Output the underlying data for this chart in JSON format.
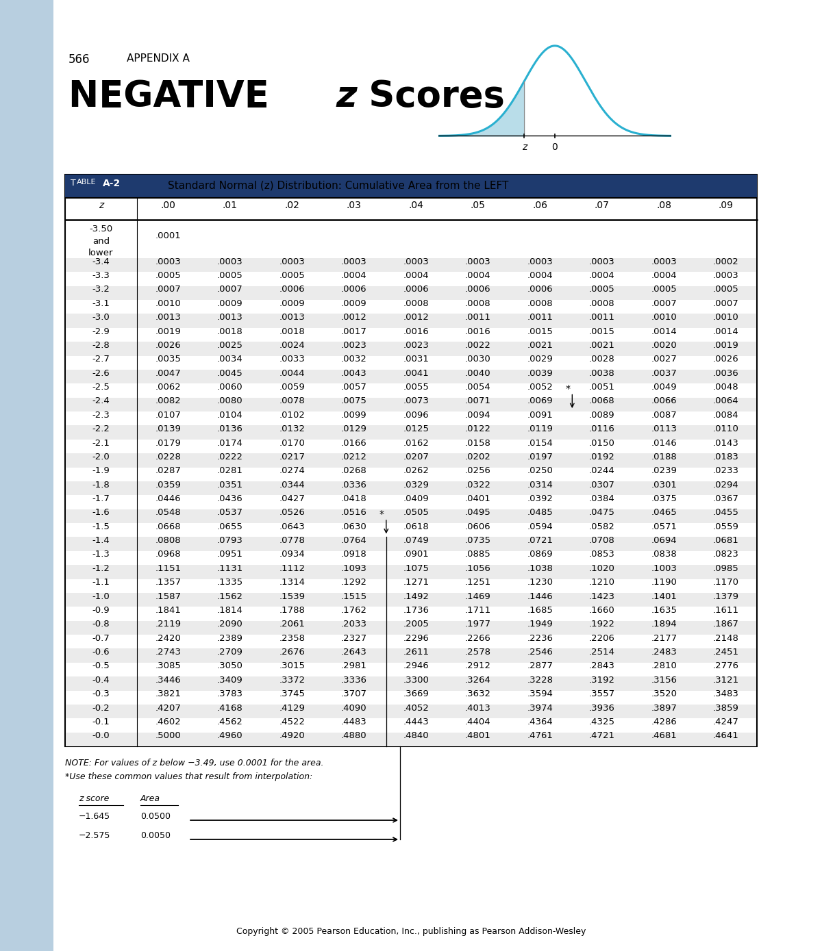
{
  "page_number": "566",
  "appendix": "APPENDIX A",
  "title_main": "NEGATIVE ",
  "title_z": "z",
  "title_rest": " Scores",
  "table_label": "TABLE A-2",
  "table_title": "Standard Normal (z) Distribution: Cumulative Area from the LEFT",
  "col_headers": [
    "z",
    ".00",
    ".01",
    ".02",
    ".03",
    ".04",
    ".05",
    ".06",
    ".07",
    ".08",
    ".09"
  ],
  "rows": [
    [
      "-3.50\nand\nlower",
      ".0001",
      "",
      "",
      "",
      "",
      "",
      "",
      "",
      "",
      ""
    ],
    [
      "-3.4",
      ".0003",
      ".0003",
      ".0003",
      ".0003",
      ".0003",
      ".0003",
      ".0003",
      ".0003",
      ".0003",
      ".0002"
    ],
    [
      "-3.3",
      ".0005",
      ".0005",
      ".0005",
      ".0004",
      ".0004",
      ".0004",
      ".0004",
      ".0004",
      ".0004",
      ".0003"
    ],
    [
      "-3.2",
      ".0007",
      ".0007",
      ".0006",
      ".0006",
      ".0006",
      ".0006",
      ".0006",
      ".0005",
      ".0005",
      ".0005"
    ],
    [
      "-3.1",
      ".0010",
      ".0009",
      ".0009",
      ".0009",
      ".0008",
      ".0008",
      ".0008",
      ".0008",
      ".0007",
      ".0007"
    ],
    [
      "-3.0",
      ".0013",
      ".0013",
      ".0013",
      ".0012",
      ".0012",
      ".0011",
      ".0011",
      ".0011",
      ".0010",
      ".0010"
    ],
    [
      "-2.9",
      ".0019",
      ".0018",
      ".0018",
      ".0017",
      ".0016",
      ".0016",
      ".0015",
      ".0015",
      ".0014",
      ".0014"
    ],
    [
      "-2.8",
      ".0026",
      ".0025",
      ".0024",
      ".0023",
      ".0023",
      ".0022",
      ".0021",
      ".0021",
      ".0020",
      ".0019"
    ],
    [
      "-2.7",
      ".0035",
      ".0034",
      ".0033",
      ".0032",
      ".0031",
      ".0030",
      ".0029",
      ".0028",
      ".0027",
      ".0026"
    ],
    [
      "-2.6",
      ".0047",
      ".0045",
      ".0044",
      ".0043",
      ".0041",
      ".0040",
      ".0039",
      ".0038",
      ".0037",
      ".0036"
    ],
    [
      "-2.5",
      ".0062",
      ".0060",
      ".0059",
      ".0057",
      ".0055",
      ".0054",
      ".0052",
      ".0051",
      ".0049",
      ".0048"
    ],
    [
      "-2.4",
      ".0082",
      ".0080",
      ".0078",
      ".0075",
      ".0073",
      ".0071",
      ".0069",
      ".0068",
      ".0066",
      ".0064"
    ],
    [
      "-2.3",
      ".0107",
      ".0104",
      ".0102",
      ".0099",
      ".0096",
      ".0094",
      ".0091",
      ".0089",
      ".0087",
      ".0084"
    ],
    [
      "-2.2",
      ".0139",
      ".0136",
      ".0132",
      ".0129",
      ".0125",
      ".0122",
      ".0119",
      ".0116",
      ".0113",
      ".0110"
    ],
    [
      "-2.1",
      ".0179",
      ".0174",
      ".0170",
      ".0166",
      ".0162",
      ".0158",
      ".0154",
      ".0150",
      ".0146",
      ".0143"
    ],
    [
      "-2.0",
      ".0228",
      ".0222",
      ".0217",
      ".0212",
      ".0207",
      ".0202",
      ".0197",
      ".0192",
      ".0188",
      ".0183"
    ],
    [
      "-1.9",
      ".0287",
      ".0281",
      ".0274",
      ".0268",
      ".0262",
      ".0256",
      ".0250",
      ".0244",
      ".0239",
      ".0233"
    ],
    [
      "-1.8",
      ".0359",
      ".0351",
      ".0344",
      ".0336",
      ".0329",
      ".0322",
      ".0314",
      ".0307",
      ".0301",
      ".0294"
    ],
    [
      "-1.7",
      ".0446",
      ".0436",
      ".0427",
      ".0418",
      ".0409",
      ".0401",
      ".0392",
      ".0384",
      ".0375",
      ".0367"
    ],
    [
      "-1.6",
      ".0548",
      ".0537",
      ".0526",
      ".0516",
      ".0505",
      ".0495",
      ".0485",
      ".0475",
      ".0465",
      ".0455"
    ],
    [
      "-1.5",
      ".0668",
      ".0655",
      ".0643",
      ".0630",
      ".0618",
      ".0606",
      ".0594",
      ".0582",
      ".0571",
      ".0559"
    ],
    [
      "-1.4",
      ".0808",
      ".0793",
      ".0778",
      ".0764",
      ".0749",
      ".0735",
      ".0721",
      ".0708",
      ".0694",
      ".0681"
    ],
    [
      "-1.3",
      ".0968",
      ".0951",
      ".0934",
      ".0918",
      ".0901",
      ".0885",
      ".0869",
      ".0853",
      ".0838",
      ".0823"
    ],
    [
      "-1.2",
      ".1151",
      ".1131",
      ".1112",
      ".1093",
      ".1075",
      ".1056",
      ".1038",
      ".1020",
      ".1003",
      ".0985"
    ],
    [
      "-1.1",
      ".1357",
      ".1335",
      ".1314",
      ".1292",
      ".1271",
      ".1251",
      ".1230",
      ".1210",
      ".1190",
      ".1170"
    ],
    [
      "-1.0",
      ".1587",
      ".1562",
      ".1539",
      ".1515",
      ".1492",
      ".1469",
      ".1446",
      ".1423",
      ".1401",
      ".1379"
    ],
    [
      "-0.9",
      ".1841",
      ".1814",
      ".1788",
      ".1762",
      ".1736",
      ".1711",
      ".1685",
      ".1660",
      ".1635",
      ".1611"
    ],
    [
      "-0.8",
      ".2119",
      ".2090",
      ".2061",
      ".2033",
      ".2005",
      ".1977",
      ".1949",
      ".1922",
      ".1894",
      ".1867"
    ],
    [
      "-0.7",
      ".2420",
      ".2389",
      ".2358",
      ".2327",
      ".2296",
      ".2266",
      ".2236",
      ".2206",
      ".2177",
      ".2148"
    ],
    [
      "-0.6",
      ".2743",
      ".2709",
      ".2676",
      ".2643",
      ".2611",
      ".2578",
      ".2546",
      ".2514",
      ".2483",
      ".2451"
    ],
    [
      "-0.5",
      ".3085",
      ".3050",
      ".3015",
      ".2981",
      ".2946",
      ".2912",
      ".2877",
      ".2843",
      ".2810",
      ".2776"
    ],
    [
      "-0.4",
      ".3446",
      ".3409",
      ".3372",
      ".3336",
      ".3300",
      ".3264",
      ".3228",
      ".3192",
      ".3156",
      ".3121"
    ],
    [
      "-0.3",
      ".3821",
      ".3783",
      ".3745",
      ".3707",
      ".3669",
      ".3632",
      ".3594",
      ".3557",
      ".3520",
      ".3483"
    ],
    [
      "-0.2",
      ".4207",
      ".4168",
      ".4129",
      ".4090",
      ".4052",
      ".4013",
      ".3974",
      ".3936",
      ".3897",
      ".3859"
    ],
    [
      "-0.1",
      ".4602",
      ".4562",
      ".4522",
      ".4483",
      ".4443",
      ".4404",
      ".4364",
      ".4325",
      ".4286",
      ".4247"
    ],
    [
      "-0.0",
      ".5000",
      ".4960",
      ".4920",
      ".4880",
      ".4840",
      ".4801",
      ".4761",
      ".4721",
      ".4681",
      ".4641"
    ]
  ],
  "note_line1": "NOTE: For values of z below −3.49, use 0.0001 for the area.",
  "note_line2": "*Use these common values that result from interpolation:",
  "interp_header": [
    "z score",
    "Area"
  ],
  "interp_data": [
    [
      "−1.645",
      "0.0500"
    ],
    [
      "−2.575",
      "0.0050"
    ]
  ],
  "copyright": "Copyright © 2005 Pearson Education, Inc., publishing as Pearson Addison-Wesley",
  "sidebar_color": "#b8cfe0",
  "table_header_bg": "#1e3a6e",
  "row_shade": "#ebebeb"
}
